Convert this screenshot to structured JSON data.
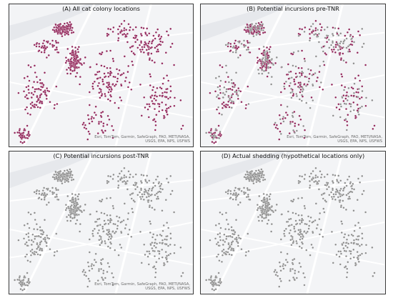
{
  "panels": [
    {
      "title": "(A) All cat colony locations",
      "attribution_line1": "Esri, TomTom, Garmin, SafeGraph, FAO, METI/NASA,",
      "attribution_line2": "USGS, EPA, NPS, USFWS",
      "mode": "all-incursion"
    },
    {
      "title": "(B) Potential incursions pre-TNR",
      "attribution_line1": "Esri, TomTom, Garmin, SafeGraph, FAO, METI/NASA,",
      "attribution_line2": "USGS, EPA, NPS, USFWS",
      "mode": "partial-incursion"
    },
    {
      "title": "(C) Potential incursions post-TNR",
      "attribution_line1": "Esri, TomTom, Garmin, SafeGraph, FAO, METI/NASA,",
      "attribution_line2": "USGS, EPA, NPS, USFWS",
      "mode": "none-incursion"
    },
    {
      "title": "(D) Actual shedding (hypothetical locations only)",
      "attribution_line1": "",
      "attribution_line2": "",
      "mode": "none-incursion"
    }
  ],
  "colors": {
    "incursion_point": "#8e1f55",
    "colony_point": "#8a8a8a",
    "basemap": "#f3f4f6",
    "road": "#ffffff",
    "water": "#e6e8ec"
  }
}
